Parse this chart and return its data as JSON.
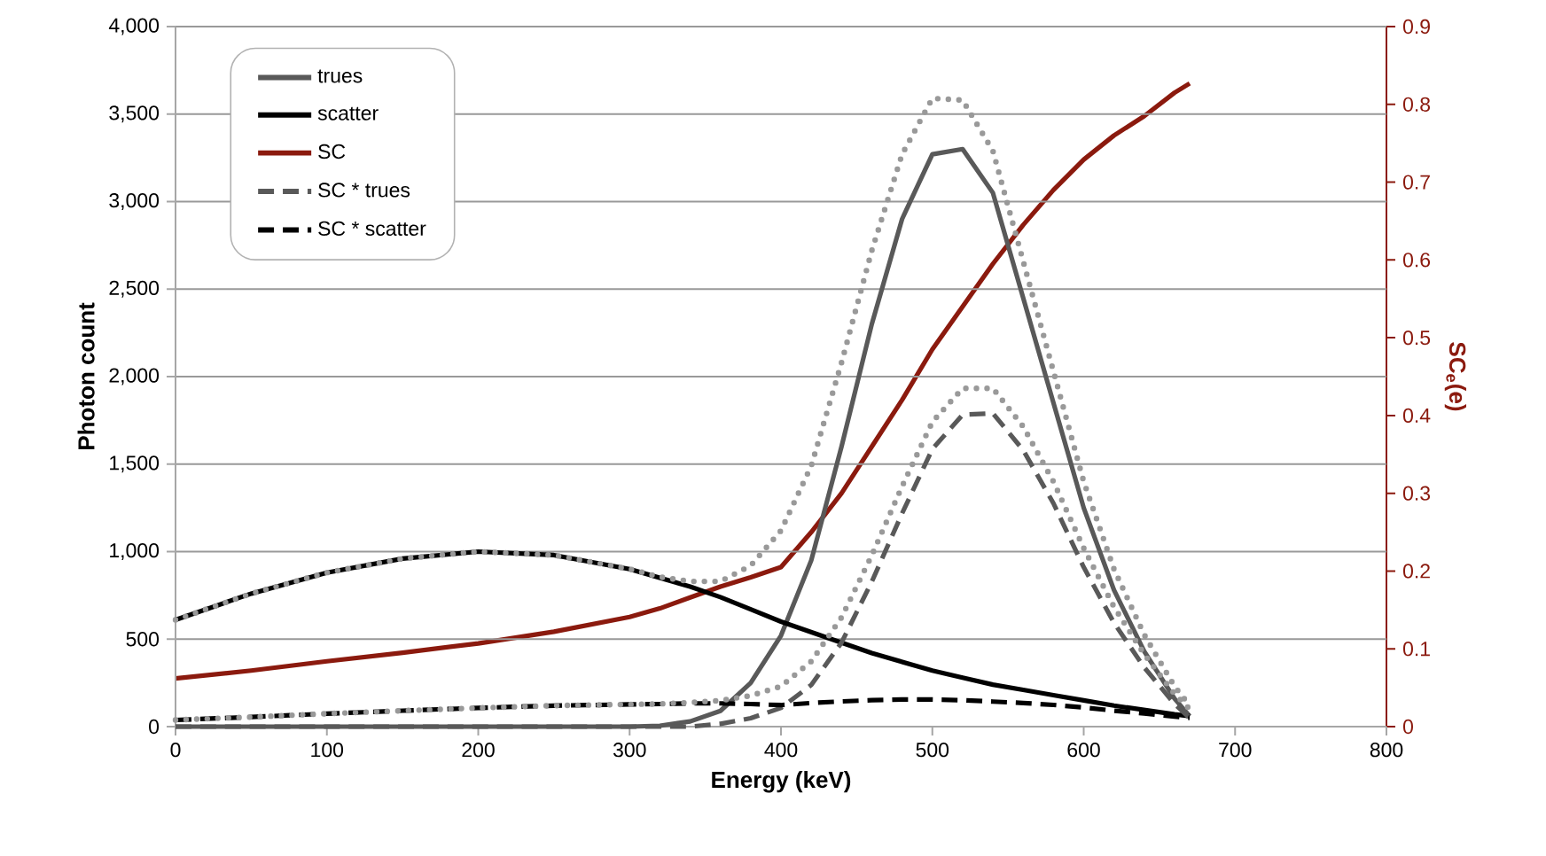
{
  "chart_data": {
    "type": "line",
    "xlabel": "Energy (keV)",
    "ylabel": "Photon count",
    "y2label": "SC$_{e}$(e)",
    "x": [
      0,
      50,
      100,
      150,
      200,
      250,
      300,
      320,
      340,
      360,
      380,
      400,
      420,
      440,
      460,
      480,
      500,
      520,
      540,
      560,
      580,
      600,
      620,
      640,
      660,
      670
    ],
    "series": [
      {
        "name": "trues",
        "color": "#595959",
        "line_style": "solid",
        "values": [
          0,
          0,
          0,
          0,
          0,
          0,
          0,
          5,
          30,
          90,
          250,
          520,
          950,
          1600,
          2300,
          2900,
          3270,
          3300,
          3050,
          2450,
          1850,
          1250,
          780,
          430,
          160,
          60
        ]
      },
      {
        "name": "scatter",
        "color": "#000000",
        "line_style": "solid",
        "values": [
          610,
          760,
          880,
          960,
          1000,
          980,
          900,
          850,
          800,
          740,
          670,
          600,
          540,
          480,
          420,
          370,
          320,
          280,
          240,
          210,
          180,
          150,
          120,
          95,
          70,
          60
        ]
      },
      {
        "name": "SC",
        "color": "#8b1a0e",
        "line_style": "solid",
        "axis": "y2",
        "values": [
          0.062,
          0.072,
          0.084,
          0.095,
          0.107,
          0.122,
          0.141,
          0.152,
          0.166,
          0.18,
          0.192,
          0.205,
          0.25,
          0.3,
          0.36,
          0.42,
          0.485,
          0.54,
          0.595,
          0.645,
          0.69,
          0.729,
          0.76,
          0.785,
          0.815,
          0.827
        ]
      },
      {
        "name": "SC * trues",
        "color": "#595959",
        "line_style": "dashed",
        "values": [
          0,
          0,
          0,
          0,
          0,
          0,
          0,
          0,
          0,
          16,
          48,
          107,
          238,
          480,
          828,
          1218,
          1586,
          1782,
          1790,
          1580,
          1276,
          911,
          593,
          338,
          130,
          50
        ]
      },
      {
        "name": "SC * scatter",
        "color": "#000000",
        "line_style": "dashed",
        "values": [
          38,
          55,
          74,
          91,
          107,
          120,
          127,
          129,
          133,
          133,
          129,
          123,
          135,
          144,
          151,
          155,
          155,
          151,
          143,
          135,
          124,
          109,
          91,
          75,
          57,
          50
        ]
      },
      {
        "color": "#999999",
        "line_style": "dotted",
        "values": [
          610,
          760,
          880,
          960,
          1000,
          980,
          900,
          855,
          830,
          830,
          920,
          1120,
          1490,
          2080,
          2720,
          3270,
          3590,
          3580,
          3290,
          2660,
          2030,
          1400,
          900,
          525,
          230,
          120
        ]
      },
      {
        "color": "#999999",
        "line_style": "dotted",
        "values": [
          38,
          55,
          74,
          91,
          107,
          120,
          127,
          130,
          138,
          149,
          177,
          230,
          373,
          624,
          979,
          1373,
          1741,
          1933,
          1933,
          1715,
          1400,
          1020,
          684,
          413,
          187,
          100
        ]
      }
    ],
    "xlim": [
      0,
      800
    ],
    "xticks": [
      0,
      100,
      200,
      300,
      400,
      500,
      600,
      700,
      800
    ],
    "ylim": [
      0,
      4000
    ],
    "yticks": [
      0,
      500,
      {
        "value": 1000,
        "label": "1,000"
      },
      {
        "value": 1500,
        "label": "1,500"
      },
      {
        "value": 2000,
        "label": "2,000"
      },
      {
        "value": 2500,
        "label": "2,500"
      },
      {
        "value": 3000,
        "label": "3,000"
      },
      {
        "value": 3500,
        "label": "3,500"
      },
      {
        "value": 4000,
        "label": "4,000"
      }
    ],
    "y2lim": [
      0,
      0.9
    ],
    "y2ticks": [
      0,
      0.1,
      0.2,
      0.3,
      0.4,
      0.5,
      0.6,
      0.7,
      0.8,
      0.9
    ],
    "grid": "y",
    "legend": "top left",
    "marker": "none"
  }
}
